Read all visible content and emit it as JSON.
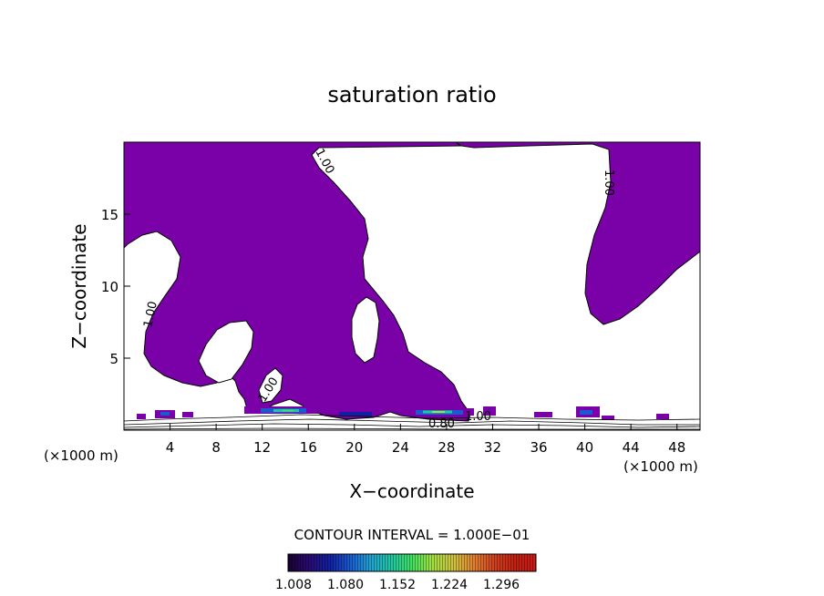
{
  "chart_data": {
    "type": "contour",
    "title": "saturation ratio",
    "xlabel": "X−coordinate",
    "ylabel": "Z−coordinate",
    "x_unit_left": "(×1000 m)",
    "x_unit_right": "(×1000 m)",
    "xlim": [
      0,
      50
    ],
    "ylim": [
      0,
      20
    ],
    "x_ticks": [
      4,
      8,
      12,
      16,
      20,
      24,
      28,
      32,
      36,
      40,
      44,
      48
    ],
    "y_ticks": [
      5,
      10,
      15
    ],
    "contour_labels": [
      "1.00",
      "1.00",
      "1.00",
      "1.00",
      "0.80",
      "1.00"
    ],
    "contour_interval_text": "CONTOUR INTERVAL = 1.000E−01",
    "colorbar": {
      "labels": [
        "1.008",
        "1.080",
        "1.152",
        "1.224",
        "1.296"
      ],
      "colors": [
        "#1a0030",
        "#2a0a70",
        "#1020a0",
        "#1a5ad0",
        "#20a0d0",
        "#20c8a0",
        "#40e060",
        "#a0e040",
        "#d0c040",
        "#e08030",
        "#d04020",
        "#c02010",
        "#cc1818"
      ]
    },
    "fill_color": "#7a00a8"
  }
}
